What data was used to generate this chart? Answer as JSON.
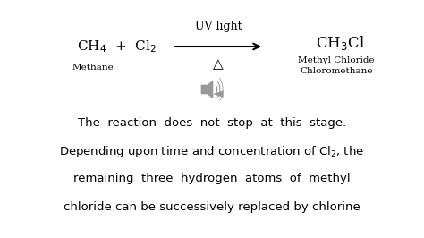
{
  "background_color": "#ffffff",
  "fig_width": 4.74,
  "fig_height": 2.66,
  "dpi": 100,
  "reactant_formula": "CH$_4$  +  Cl$_2$",
  "reactant_label": "Methane",
  "product_formula": "CH$_3$Cl",
  "product_label1": "Methyl Chloride",
  "product_label2": "Chloromethane",
  "arrow_label_top": "UV light",
  "arrow_label_bottom": "△",
  "text_line1": "The  reaction  does  not  stop  at  this  stage.",
  "text_line2": "Depending upon time and concentration of Cl$_2$, the",
  "text_line3": "remaining  three  hydrogen  atoms  of  methyl",
  "text_line4": "chloride can be successively replaced by chlorine",
  "formula_fontsize": 11,
  "label_fontsize": 7.5,
  "arrow_label_fontsize": 9,
  "body_fontsize": 9.5,
  "text_color": "#000000",
  "gray_color": "#999999"
}
